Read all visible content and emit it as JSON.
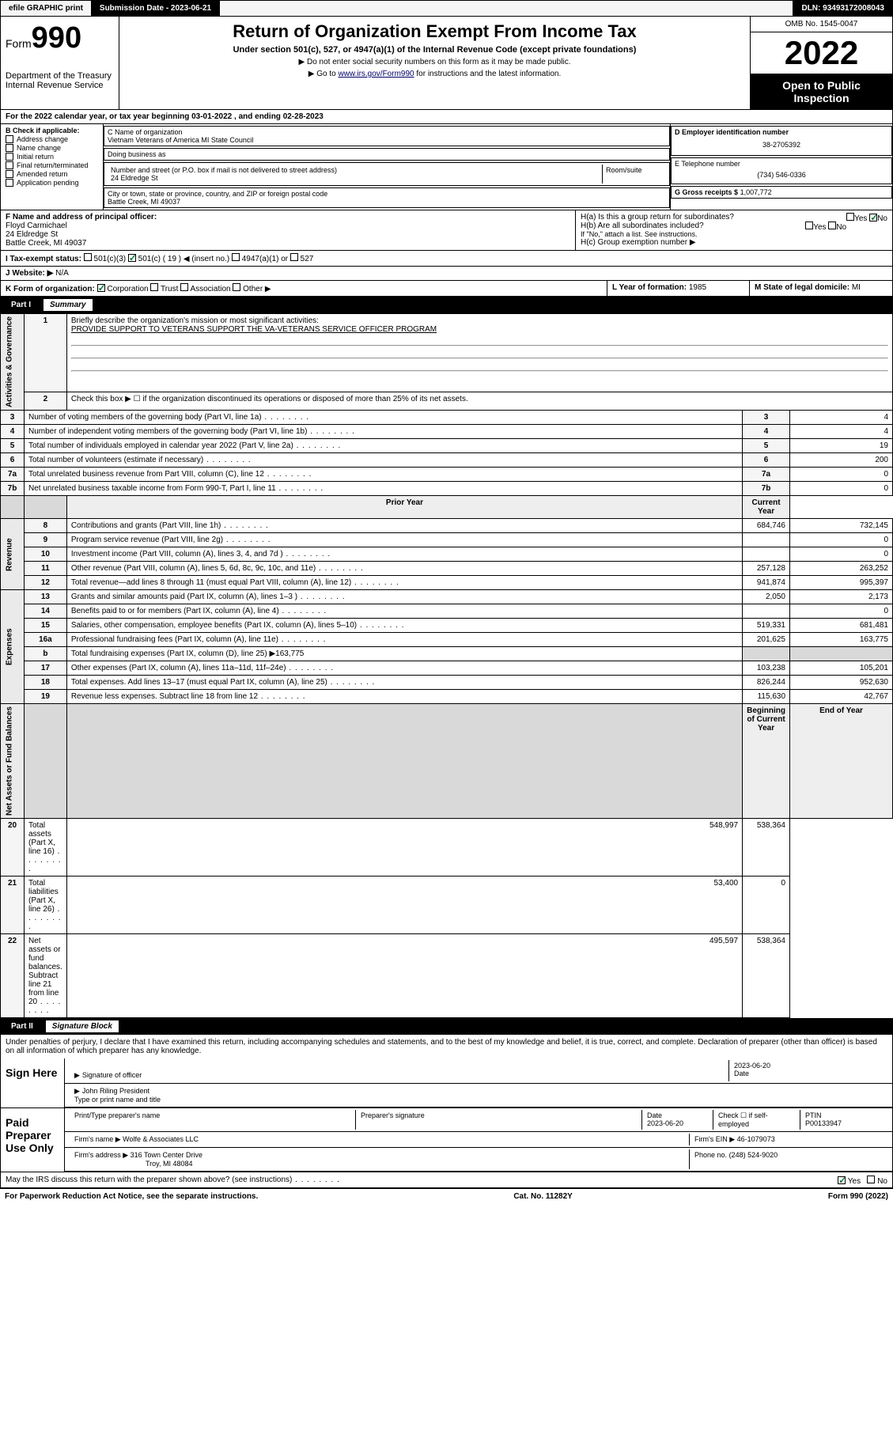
{
  "topbar": {
    "efile": "efile GRAPHIC print",
    "submission_label": "Submission Date - 2023-06-21",
    "dln_label": "DLN: 93493172008043"
  },
  "header": {
    "form_label": "Form",
    "form_number": "990",
    "dept": "Department of the Treasury",
    "irs": "Internal Revenue Service",
    "title": "Return of Organization Exempt From Income Tax",
    "subtitle": "Under section 501(c), 527, or 4947(a)(1) of the Internal Revenue Code (except private foundations)",
    "note1": "▶ Do not enter social security numbers on this form as it may be made public.",
    "note2_pre": "▶ Go to ",
    "note2_link": "www.irs.gov/Form990",
    "note2_post": " for instructions and the latest information.",
    "omb": "OMB No. 1545-0047",
    "year": "2022",
    "inspection": "Open to Public Inspection"
  },
  "line_a": "For the 2022 calendar year, or tax year beginning 03-01-2022    , and ending 02-28-2023",
  "col_b": {
    "heading": "B Check if applicable:",
    "items": [
      "Address change",
      "Name change",
      "Initial return",
      "Final return/terminated",
      "Amended return",
      "Application pending"
    ]
  },
  "col_c": {
    "name_label": "C Name of organization",
    "org_name": "Vietnam Veterans of America MI State Council",
    "dba_label": "Doing business as",
    "street_label": "Number and street (or P.O. box if mail is not delivered to street address)",
    "room_label": "Room/suite",
    "street": "24 Eldredge St",
    "city_label": "City or town, state or province, country, and ZIP or foreign postal code",
    "city": "Battle Creek, MI  49037"
  },
  "col_d": {
    "label": "D Employer identification number",
    "value": "38-2705392"
  },
  "col_e": {
    "label": "E Telephone number",
    "value": "(734) 546-0336"
  },
  "col_g": {
    "label": "G Gross receipts $",
    "value": "1,007,772"
  },
  "col_f": {
    "label": "F  Name and address of principal officer:",
    "name": "Floyd Carmichael",
    "street": "24 Eldredge St",
    "city": "Battle Creek, MI  49037"
  },
  "col_h": {
    "ha": "H(a)  Is this a group return for subordinates?",
    "hb": "H(b)  Are all subordinates included?",
    "hb_note": "If \"No,\" attach a list. See instructions.",
    "hc": "H(c)  Group exemption number ▶"
  },
  "line_i": {
    "label": "I     Tax-exempt status:",
    "opt1": "501(c)(3)",
    "opt2": "501(c) ( 19 ) ◀ (insert no.)",
    "opt3": "4947(a)(1) or",
    "opt4": "527"
  },
  "line_j": {
    "label": "J    Website: ▶",
    "value": "N/A"
  },
  "line_k": {
    "label": "K Form of organization:",
    "opts": [
      "Corporation",
      "Trust",
      "Association",
      "Other ▶"
    ]
  },
  "line_l": {
    "label": "L Year of formation:",
    "value": "1985"
  },
  "line_m": {
    "label": "M State of legal domicile:",
    "value": "MI"
  },
  "part1": {
    "label": "Part I",
    "title": "Summary",
    "q1": "Briefly describe the organization's mission or most significant activities:",
    "q1_ans": "PROVIDE SUPPORT TO VETERANS SUPPORT THE VA-VETERANS SERVICE OFFICER PROGRAM",
    "q2": "Check this box ▶ ☐  if the organization discontinued its operations or disposed of more than 25% of its net assets.",
    "sections": {
      "activities": "Activities & Governance",
      "revenue": "Revenue",
      "expenses": "Expenses",
      "netassets": "Net Assets or Fund Balances"
    },
    "rows_ag": [
      {
        "n": "3",
        "txt": "Number of voting members of the governing body (Part VI, line 1a)",
        "v": "4"
      },
      {
        "n": "4",
        "txt": "Number of independent voting members of the governing body (Part VI, line 1b)",
        "v": "4"
      },
      {
        "n": "5",
        "txt": "Total number of individuals employed in calendar year 2022 (Part V, line 2a)",
        "v": "19"
      },
      {
        "n": "6",
        "txt": "Total number of volunteers (estimate if necessary)",
        "v": "200"
      },
      {
        "n": "7a",
        "txt": "Total unrelated business revenue from Part VIII, column (C), line 12",
        "v": "0"
      },
      {
        "n": "7b",
        "txt": "Net unrelated business taxable income from Form 990-T, Part I, line 11",
        "v": "0"
      }
    ],
    "hdr_prior": "Prior Year",
    "hdr_curr": "Current Year",
    "rows_rev": [
      {
        "n": "8",
        "txt": "Contributions and grants (Part VIII, line 1h)",
        "p": "684,746",
        "c": "732,145"
      },
      {
        "n": "9",
        "txt": "Program service revenue (Part VIII, line 2g)",
        "p": "",
        "c": "0"
      },
      {
        "n": "10",
        "txt": "Investment income (Part VIII, column (A), lines 3, 4, and 7d )",
        "p": "",
        "c": "0"
      },
      {
        "n": "11",
        "txt": "Other revenue (Part VIII, column (A), lines 5, 6d, 8c, 9c, 10c, and 11e)",
        "p": "257,128",
        "c": "263,252"
      },
      {
        "n": "12",
        "txt": "Total revenue—add lines 8 through 11 (must equal Part VIII, column (A), line 12)",
        "p": "941,874",
        "c": "995,397"
      }
    ],
    "rows_exp": [
      {
        "n": "13",
        "txt": "Grants and similar amounts paid (Part IX, column (A), lines 1–3 )",
        "p": "2,050",
        "c": "2,173"
      },
      {
        "n": "14",
        "txt": "Benefits paid to or for members (Part IX, column (A), line 4)",
        "p": "",
        "c": "0"
      },
      {
        "n": "15",
        "txt": "Salaries, other compensation, employee benefits (Part IX, column (A), lines 5–10)",
        "p": "519,331",
        "c": "681,481"
      },
      {
        "n": "16a",
        "txt": "Professional fundraising fees (Part IX, column (A), line 11e)",
        "p": "201,625",
        "c": "163,775"
      },
      {
        "n": "b",
        "txt": "Total fundraising expenses (Part IX, column (D), line 25) ▶163,775",
        "p": "SHADE",
        "c": "SHADE"
      },
      {
        "n": "17",
        "txt": "Other expenses (Part IX, column (A), lines 11a–11d, 11f–24e)",
        "p": "103,238",
        "c": "105,201"
      },
      {
        "n": "18",
        "txt": "Total expenses. Add lines 13–17 (must equal Part IX, column (A), line 25)",
        "p": "826,244",
        "c": "952,630"
      },
      {
        "n": "19",
        "txt": "Revenue less expenses. Subtract line 18 from line 12",
        "p": "115,630",
        "c": "42,767"
      }
    ],
    "hdr_begin": "Beginning of Current Year",
    "hdr_end": "End of Year",
    "rows_net": [
      {
        "n": "20",
        "txt": "Total assets (Part X, line 16)",
        "p": "548,997",
        "c": "538,364"
      },
      {
        "n": "21",
        "txt": "Total liabilities (Part X, line 26)",
        "p": "53,400",
        "c": "0"
      },
      {
        "n": "22",
        "txt": "Net assets or fund balances. Subtract line 21 from line 20",
        "p": "495,597",
        "c": "538,364"
      }
    ]
  },
  "part2": {
    "label": "Part II",
    "title": "Signature Block",
    "penalties": "Under penalties of perjury, I declare that I have examined this return, including accompanying schedules and statements, and to the best of my knowledge and belief, it is true, correct, and complete. Declaration of preparer (other than officer) is based on all information of which preparer has any knowledge.",
    "sign_here": "Sign Here",
    "sig_officer": "Signature of officer",
    "sig_date": "2023-06-20",
    "date_label": "Date",
    "officer_name": "John Riling President",
    "officer_type": "Type or print name and title",
    "paid": "Paid Preparer Use Only",
    "prep_name_label": "Print/Type preparer's name",
    "prep_sig_label": "Preparer's signature",
    "prep_date_label": "Date",
    "prep_date": "2023-06-20",
    "check_label": "Check ☐ if self-employed",
    "ptin_label": "PTIN",
    "ptin": "P00133947",
    "firm_name_label": "Firm's name   ▶",
    "firm_name": "Wolfe & Associates LLC",
    "firm_ein_label": "Firm's EIN ▶",
    "firm_ein": "46-1079073",
    "firm_addr_label": "Firm's address ▶",
    "firm_addr": "316 Town Center Drive",
    "firm_city": "Troy, MI  48084",
    "phone_label": "Phone no.",
    "phone": "(248) 524-9020",
    "may_irs": "May the IRS discuss this return with the preparer shown above? (see instructions)",
    "yes": "Yes",
    "no": "No"
  },
  "footer": {
    "paperwork": "For Paperwork Reduction Act Notice, see the separate instructions.",
    "cat": "Cat. No. 11282Y",
    "form": "Form 990 (2022)"
  }
}
